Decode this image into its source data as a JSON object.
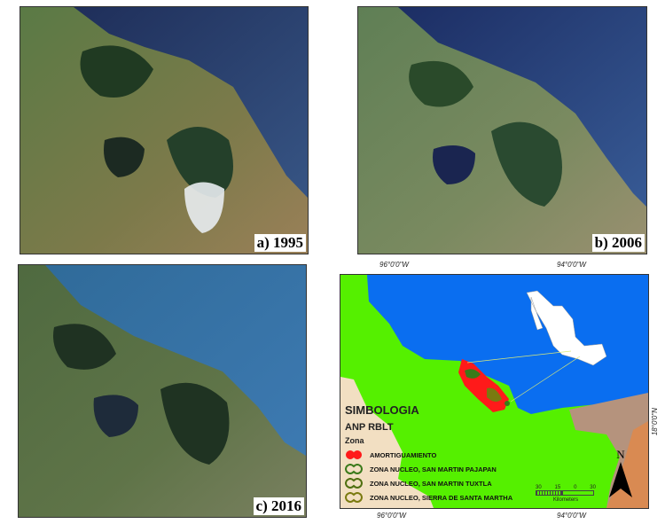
{
  "panels": [
    {
      "label": "a) 1995"
    },
    {
      "label": "b) 2006"
    },
    {
      "label": "c) 2016"
    }
  ],
  "map": {
    "coords": {
      "lon_left": "96°0'0\"W",
      "lon_right": "94°0'0\"W",
      "lat": "18°0'0\"N"
    },
    "legend": {
      "title": "SIMBOLOGIA",
      "subtitle": "ANP RBLT",
      "group": "Zona",
      "items": [
        {
          "label": "AMORTIGUAMIENTO",
          "color": "#ff1a1a"
        },
        {
          "label": "ZONA NUCLEO, SAN MARTIN PAJAPAN",
          "color": "#3a7a1a"
        },
        {
          "label": "ZONA NUCLEO, SAN MARTIN TUXTLA",
          "color": "#4f6f10"
        },
        {
          "label": "ZONA NUCLEO, SIERRA DE SANTA MARTHA",
          "color": "#7a7a10"
        }
      ]
    },
    "scale": {
      "ticks": [
        "30",
        "15",
        "0",
        "30"
      ],
      "unit": "Kilometers"
    },
    "north": "N",
    "colors": {
      "sea": "#0a6ef0",
      "land_veracruz": "#55f000",
      "land_oaxaca": "#f2dfc2",
      "land_tabasco": "#b5937d",
      "land_chiapas": "#d98a52"
    }
  }
}
